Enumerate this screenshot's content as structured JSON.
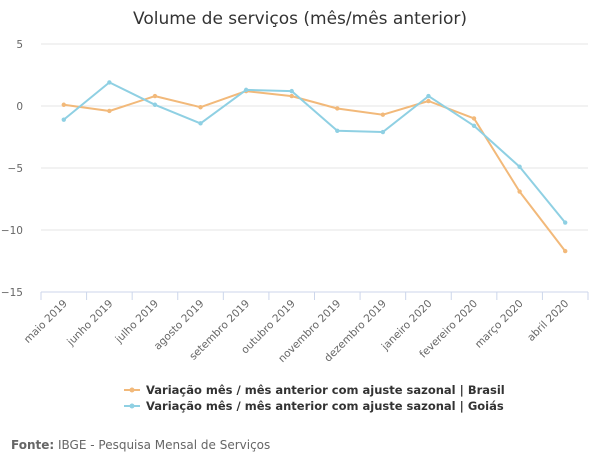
{
  "chart_data": {
    "type": "line",
    "title": "Volume de serviços (mês/mês anterior)",
    "categories": [
      "maio 2019",
      "junho 2019",
      "julho 2019",
      "agosto 2019",
      "setembro 2019",
      "outubro 2019",
      "novembro 2019",
      "dezembro 2019",
      "janeiro 2020",
      "fevereiro 2020",
      "março 2020",
      "abril 2020"
    ],
    "yticks": [
      "5",
      "0",
      "−5",
      "−10",
      "−15"
    ],
    "ylim": [
      -15,
      5
    ],
    "ytick_values": [
      5,
      0,
      -5,
      -10,
      -15
    ],
    "series": [
      {
        "name": "Variação mês / mês anterior com ajuste sazonal | Brasil",
        "color": "#f2b97a",
        "values": [
          0.1,
          -0.4,
          0.8,
          -0.1,
          1.2,
          0.8,
          -0.2,
          -0.7,
          0.4,
          -1.0,
          -6.9,
          -11.7
        ]
      },
      {
        "name": "Variação mês / mês anterior com ajuste sazonal | Goiás",
        "color": "#8fd0e3",
        "values": [
          -1.1,
          1.9,
          0.1,
          -1.4,
          1.3,
          1.2,
          -2.0,
          -2.1,
          0.8,
          -1.6,
          -4.9,
          -9.4
        ]
      }
    ],
    "grid": true,
    "legend_position": "bottom"
  },
  "source": {
    "label": "Fonte:",
    "text": " IBGE - Pesquisa Mensal de Serviços"
  }
}
